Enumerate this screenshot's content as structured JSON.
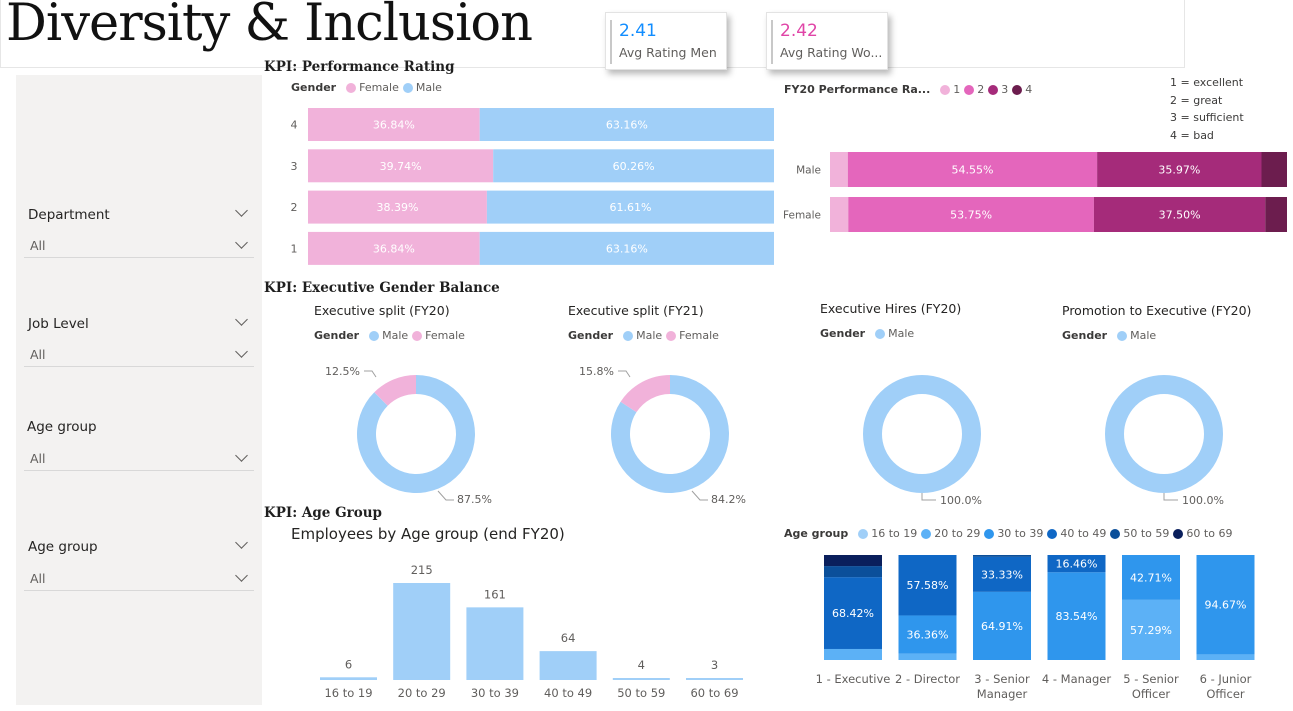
{
  "page": {
    "title": "Diversity & Inclusion"
  },
  "kpis": [
    {
      "value": "2.41",
      "label": "Avg Rating Men",
      "color": "#118dff"
    },
    {
      "value": "2.42",
      "label": "Avg Rating Wo...",
      "color": "#e044a7"
    }
  ],
  "filters": [
    {
      "label": "Department",
      "value": "All"
    },
    {
      "label": "Job Level",
      "value": "All"
    },
    {
      "label": "Age group",
      "value": "All"
    },
    {
      "label": "Age group",
      "value": "All"
    }
  ],
  "colors": {
    "female": "#f1b2da",
    "male": "#a0cff8",
    "rating1": "#f1b2da",
    "rating2": "#e466bc",
    "rating3": "#a52b7a",
    "rating4": "#6c1d4e",
    "age1": "#a0cff8",
    "age2": "#5cb1f6",
    "age3": "#2f96ed",
    "age4": "#0f67c5",
    "age5": "#0b4f9a",
    "age6": "#0a1f5c"
  },
  "sections": {
    "performance": "KPI: Performance Rating",
    "executive": "KPI: Executive Gender Balance",
    "age": "KPI: Age Group"
  },
  "perf_gender_chart": {
    "legend_title": "Gender",
    "legend": [
      "Female",
      "Male"
    ],
    "chart_data": {
      "type": "bar",
      "categories": [
        "4",
        "3",
        "2",
        "1"
      ],
      "series": [
        {
          "name": "Female",
          "values": [
            36.84,
            39.74,
            38.39,
            36.84
          ],
          "labels": [
            "36.84%",
            "39.74%",
            "38.39%",
            "36.84%"
          ]
        },
        {
          "name": "Male",
          "values": [
            63.16,
            60.26,
            61.61,
            63.16
          ],
          "labels": [
            "63.16%",
            "60.26%",
            "61.61%",
            "63.16%"
          ]
        }
      ],
      "stacked_percent": true
    }
  },
  "fy20_rating_chart": {
    "title": "FY20 Performance Ra...",
    "legend": [
      "1",
      "2",
      "3",
      "4"
    ],
    "notes": [
      "1 = excellent",
      "2 = great",
      "3 = sufficient",
      "4 = bad"
    ],
    "chart_data": {
      "type": "bar",
      "categories": [
        "Male",
        "Female"
      ],
      "series": [
        {
          "name": "1",
          "values": [
            3.9,
            4.0
          ],
          "labels": [
            "",
            ""
          ]
        },
        {
          "name": "2",
          "values": [
            54.55,
            53.75
          ],
          "labels": [
            "54.55%",
            "53.75%"
          ]
        },
        {
          "name": "3",
          "values": [
            35.97,
            37.5
          ],
          "labels": [
            "35.97%",
            "37.50%"
          ]
        },
        {
          "name": "4",
          "values": [
            5.58,
            4.75
          ],
          "labels": [
            "",
            ""
          ]
        }
      ],
      "stacked_percent": true
    }
  },
  "donuts": [
    {
      "title": "Executive split (FY20)",
      "legend_title": "Gender",
      "legend": [
        "Male",
        "Female"
      ],
      "chart_data": {
        "type": "pie",
        "slices": [
          {
            "name": "Male",
            "value": 87.5,
            "label": "87.5%"
          },
          {
            "name": "Female",
            "value": 12.5,
            "label": "12.5%"
          }
        ]
      }
    },
    {
      "title": "Executive split (FY21)",
      "legend_title": "Gender",
      "legend": [
        "Male",
        "Female"
      ],
      "chart_data": {
        "type": "pie",
        "slices": [
          {
            "name": "Male",
            "value": 84.2,
            "label": "84.2%"
          },
          {
            "name": "Female",
            "value": 15.8,
            "label": "15.8%"
          }
        ]
      }
    },
    {
      "title": "Executive Hires (FY20)",
      "legend_title": "Gender",
      "legend": [
        "Male"
      ],
      "chart_data": {
        "type": "pie",
        "slices": [
          {
            "name": "Male",
            "value": 100.0,
            "label": "100.0%"
          }
        ]
      }
    },
    {
      "title": "Promotion to Executive (FY20)",
      "legend_title": "Gender",
      "legend": [
        "Male"
      ],
      "chart_data": {
        "type": "pie",
        "slices": [
          {
            "name": "Male",
            "value": 100.0,
            "label": "100.0%"
          }
        ]
      }
    }
  ],
  "age_column_chart": {
    "title": "Employees by Age group (end FY20)",
    "chart_data": {
      "type": "bar",
      "categories": [
        "16 to 19",
        "20 to 29",
        "30 to 39",
        "40 to 49",
        "50 to 59",
        "60 to 69"
      ],
      "values": [
        6,
        215,
        161,
        64,
        4,
        3
      ],
      "labels": [
        "6",
        "215",
        "161",
        "64",
        "4",
        "3"
      ]
    }
  },
  "age_level_chart": {
    "legend_title": "Age group",
    "legend": [
      "16 to 19",
      "20 to 29",
      "30 to 39",
      "40 to 49",
      "50 to 59",
      "60 to 69"
    ],
    "chart_data": {
      "type": "bar",
      "stacked_percent": true,
      "categories": [
        [
          "1 - Executive"
        ],
        [
          "2 - Director"
        ],
        [
          "3 - Senior",
          "Manager"
        ],
        [
          "4 - Manager"
        ],
        [
          "5 - Senior",
          "Officer"
        ],
        [
          "6 - Junior",
          "Officer"
        ]
      ],
      "series": [
        {
          "name": "16 to 19",
          "values": [
            0,
            0,
            0,
            0,
            0,
            0
          ],
          "labels": [
            "",
            "",
            "",
            "",
            "",
            ""
          ]
        },
        {
          "name": "20 to 29",
          "values": [
            10.5,
            6.06,
            0,
            0,
            57.29,
            5.33
          ],
          "labels": [
            "",
            "",
            "",
            "",
            "57.29%",
            ""
          ]
        },
        {
          "name": "30 to 39",
          "values": [
            0,
            36.36,
            64.91,
            83.54,
            42.71,
            94.67
          ],
          "labels": [
            "",
            "36.36%",
            "64.91%",
            "83.54%",
            "42.71%",
            "94.67%"
          ]
        },
        {
          "name": "40 to 49",
          "values": [
            68.42,
            57.58,
            33.33,
            16.46,
            0,
            0
          ],
          "labels": [
            "68.42%",
            "57.58%",
            "33.33%",
            "16.46%",
            "",
            ""
          ]
        },
        {
          "name": "50 to 59",
          "values": [
            10.53,
            0,
            1.76,
            0,
            0,
            0
          ],
          "labels": [
            "",
            "",
            "",
            "",
            "",
            ""
          ]
        },
        {
          "name": "60 to 69",
          "values": [
            10.55,
            0,
            0,
            0,
            0,
            0
          ],
          "labels": [
            "",
            "",
            "",
            "",
            "",
            ""
          ]
        }
      ]
    }
  }
}
